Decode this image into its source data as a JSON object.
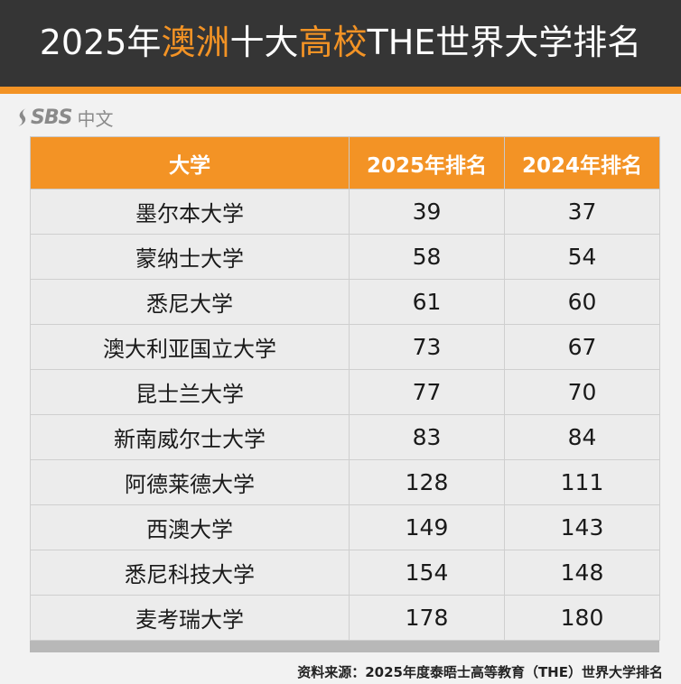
{
  "header": {
    "title_year": "2025年",
    "title_hl1": "澳洲",
    "title_mid": "十大",
    "title_hl2": "高校",
    "title_tail": "THE世界大学排名"
  },
  "brand": {
    "name": "SBS",
    "lang": "中文"
  },
  "colors": {
    "accent": "#f39325",
    "header_bg": "#353535"
  },
  "table": {
    "headers": [
      "大学",
      "2025年排名",
      "2024年排名"
    ],
    "rows": [
      {
        "name": "墨尔本大学",
        "rank2025": "39",
        "rank2024": "37"
      },
      {
        "name": "蒙纳士大学",
        "rank2025": "58",
        "rank2024": "54"
      },
      {
        "name": "悉尼大学",
        "rank2025": "61",
        "rank2024": "60"
      },
      {
        "name": "澳大利亚国立大学",
        "rank2025": "73",
        "rank2024": "67"
      },
      {
        "name": "昆士兰大学",
        "rank2025": "77",
        "rank2024": "70"
      },
      {
        "name": "新南威尔士大学",
        "rank2025": "83",
        "rank2024": "84"
      },
      {
        "name": "阿德莱德大学",
        "rank2025": "128",
        "rank2024": "111"
      },
      {
        "name": "西澳大学",
        "rank2025": "149",
        "rank2024": "143"
      },
      {
        "name": "悉尼科技大学",
        "rank2025": "154",
        "rank2024": "148"
      },
      {
        "name": "麦考瑞大学",
        "rank2025": "178",
        "rank2024": "180"
      }
    ]
  },
  "footer": {
    "source": "资料来源：2025年度泰晤士高等教育（THE）世界大学排名"
  }
}
